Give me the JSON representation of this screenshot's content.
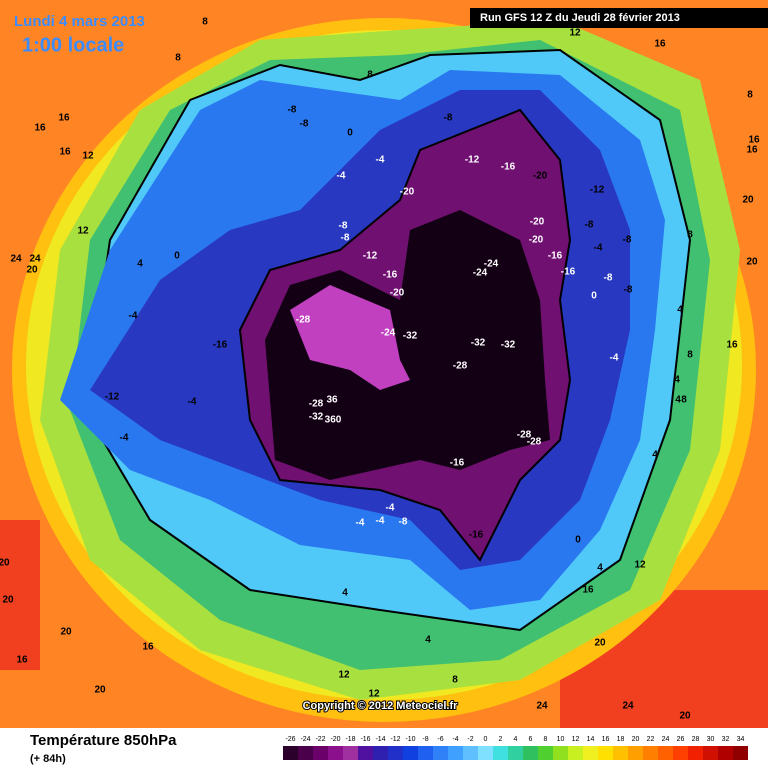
{
  "header": {
    "date": "Lundi 4 mars 2013",
    "time": "1:00 locale",
    "run": "Run GFS 12 Z du Jeudi 28 février 2013"
  },
  "map": {
    "labels": [
      "-28",
      "-24",
      "-32",
      "-32",
      "-32",
      "-28",
      "-28",
      "36",
      "-32",
      "360",
      "-28",
      "-28",
      "-16",
      "-16",
      "-16",
      "-12",
      "-4",
      "-4",
      "-4",
      "-4",
      "-4",
      "-8",
      "-20",
      "-16",
      "-12",
      "-8",
      "-8",
      "-24",
      "-24",
      "-20",
      "-20",
      "-20",
      "-16",
      "-12",
      "-20",
      "-8",
      "-12",
      "-8",
      "-16",
      "-16",
      "-4",
      "-8",
      "-8",
      "0",
      "-8",
      "-4",
      "-8",
      "-8",
      "0",
      "-4",
      "-4",
      "0",
      "-4",
      "4",
      "8",
      "8",
      "8",
      "12",
      "16",
      "16",
      "16",
      "12",
      "16",
      "12",
      "24",
      "24",
      "20",
      "8",
      "4",
      "16",
      "4",
      "4",
      "8",
      "8",
      "4",
      "0",
      "4",
      "12",
      "16",
      "20",
      "24",
      "24",
      "20",
      "20",
      "16",
      "20",
      "12",
      "12",
      "4",
      "4",
      "8",
      "20",
      "16",
      "16",
      "20",
      "8",
      "20",
      "20",
      "16"
    ],
    "copyright": "Copyright © 2012 Meteociel.fr"
  },
  "footer": {
    "title": "Température 850hPa",
    "lead": "(+ 84h)"
  },
  "legend": {
    "ticks": [
      -26,
      -24,
      -22,
      -20,
      -18,
      -16,
      -14,
      -12,
      -10,
      -8,
      -6,
      -4,
      -2,
      0,
      2,
      4,
      6,
      8,
      10,
      12,
      14,
      16,
      18,
      20,
      22,
      24,
      26,
      28,
      30,
      32,
      34
    ],
    "colors": [
      "#2b002b",
      "#4b004b",
      "#6b006b",
      "#8b108b",
      "#a030a0",
      "#5010a0",
      "#3020b0",
      "#2030c8",
      "#1040e0",
      "#2060f0",
      "#3080f8",
      "#40a0ff",
      "#60c0ff",
      "#80e0ff",
      "#40e0e0",
      "#30d0a0",
      "#30c060",
      "#50d030",
      "#90e020",
      "#c8f020",
      "#f0f020",
      "#ffe000",
      "#ffc000",
      "#ffa000",
      "#ff8000",
      "#ff6000",
      "#ff4000",
      "#f02000",
      "#d01000",
      "#b00000",
      "#900000"
    ]
  }
}
